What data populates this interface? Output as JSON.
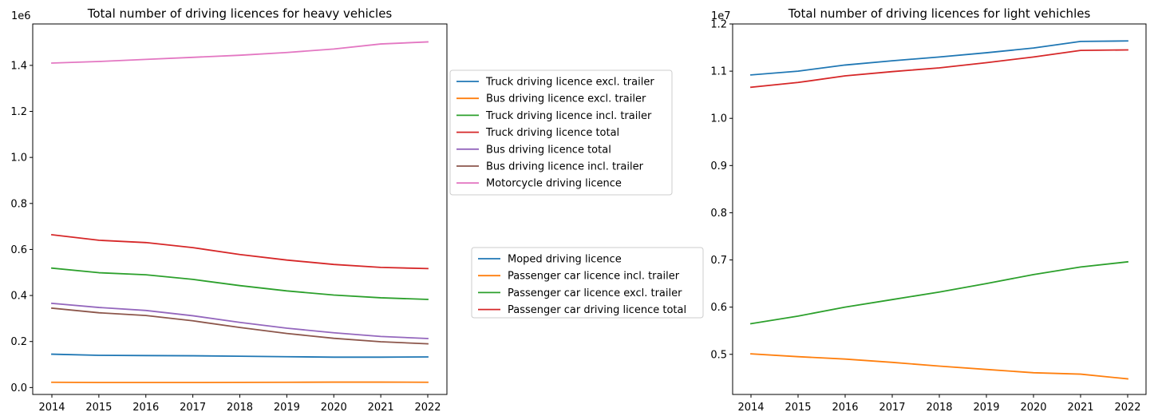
{
  "chart_data": [
    {
      "type": "line",
      "title": "Total number of driving licences for heavy vehicles",
      "xlabel": "",
      "ylabel": "",
      "y_offset_label": "1e6",
      "x": [
        2014,
        2015,
        2016,
        2017,
        2018,
        2019,
        2020,
        2021,
        2022
      ],
      "xticks": [
        "2014",
        "2015",
        "2016",
        "2017",
        "2018",
        "2019",
        "2020",
        "2021",
        "2022"
      ],
      "ylim": [
        -30000,
        1580000
      ],
      "yticks": [
        0,
        200000,
        400000,
        600000,
        800000,
        1000000,
        1200000,
        1400000
      ],
      "yticklabels": [
        "0.0",
        "0.2",
        "0.4",
        "0.6",
        "0.8",
        "1.0",
        "1.2",
        "1.4"
      ],
      "grid": false,
      "legend": "outside-right-top",
      "series": [
        {
          "name": "Truck driving licence excl. trailer",
          "color": "#1f77b4",
          "values": [
            145000,
            140000,
            139000,
            138000,
            136000,
            134000,
            132000,
            132000,
            133000
          ]
        },
        {
          "name": "Bus driving licence excl. trailer",
          "color": "#ff7f0e",
          "values": [
            23000,
            22000,
            22000,
            22000,
            22500,
            23000,
            23500,
            23500,
            23000
          ]
        },
        {
          "name": "Truck driving licence incl. trailer",
          "color": "#2ca02c",
          "values": [
            519000,
            499000,
            490000,
            470000,
            443000,
            420000,
            402000,
            390000,
            383000
          ]
        },
        {
          "name": "Truck driving licence total",
          "color": "#d62728",
          "values": [
            664000,
            640000,
            630000,
            608000,
            578000,
            554000,
            535000,
            522000,
            517000
          ]
        },
        {
          "name": "Bus driving licence total",
          "color": "#9467bd",
          "values": [
            366000,
            348000,
            335000,
            312000,
            283000,
            258000,
            238000,
            222000,
            213000
          ]
        },
        {
          "name": "Bus driving licence incl. trailer",
          "color": "#8c564b",
          "values": [
            345000,
            325000,
            313000,
            290000,
            261000,
            235000,
            214000,
            199000,
            190000
          ]
        },
        {
          "name": "Motorcycle driving licence",
          "color": "#e377c2",
          "values": [
            1410000,
            1417000,
            1426000,
            1435000,
            1444000,
            1456000,
            1471000,
            1493000,
            1502000
          ]
        }
      ]
    },
    {
      "type": "line",
      "title": "Total number of driving licences for light vehichles",
      "xlabel": "",
      "ylabel": "",
      "y_offset_label": "1e7",
      "x": [
        2014,
        2015,
        2016,
        2017,
        2018,
        2019,
        2020,
        2021,
        2022
      ],
      "xticks": [
        "2014",
        "2015",
        "2016",
        "2017",
        "2018",
        "2019",
        "2020",
        "2021",
        "2022"
      ],
      "ylim": [
        4150000,
        12000000
      ],
      "yticks": [
        5000000,
        6000000,
        7000000,
        8000000,
        9000000,
        10000000,
        11000000,
        12000000
      ],
      "yticklabels": [
        "0.5",
        "0.6",
        "0.7",
        "0.8",
        "0.9",
        "1.0",
        "1.1",
        "1.2"
      ],
      "grid": false,
      "legend": "outside-left-center",
      "series": [
        {
          "name": "Moped driving licence",
          "color": "#1f77b4",
          "values": [
            10920000,
            11000000,
            11130000,
            11220000,
            11300000,
            11390000,
            11490000,
            11630000,
            11640000
          ]
        },
        {
          "name": "Passenger car licence incl. trailer",
          "color": "#ff7f0e",
          "values": [
            5010000,
            4950000,
            4900000,
            4830000,
            4750000,
            4680000,
            4610000,
            4580000,
            4480000
          ]
        },
        {
          "name": "Passenger car licence excl. trailer",
          "color": "#2ca02c",
          "values": [
            5650000,
            5810000,
            6000000,
            6160000,
            6320000,
            6500000,
            6690000,
            6850000,
            6960000
          ]
        },
        {
          "name": "Passenger car driving licence total",
          "color": "#d62728",
          "values": [
            10660000,
            10760000,
            10900000,
            10990000,
            11070000,
            11180000,
            11300000,
            11440000,
            11450000
          ]
        }
      ]
    }
  ]
}
